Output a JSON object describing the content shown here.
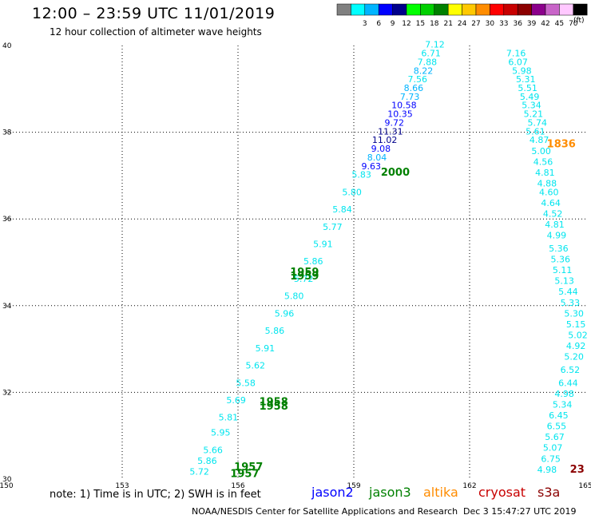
{
  "header": {
    "title": "12:00 – 23:59 UTC 11/01/2019",
    "subtitle": "12 hour collection of altimeter wave heights"
  },
  "legend": {
    "bins": [
      {
        "color": "#808080",
        "label": ""
      },
      {
        "color": "#00ffff",
        "label": "3"
      },
      {
        "color": "#00b4ff",
        "label": "6"
      },
      {
        "color": "#0000ff",
        "label": "9"
      },
      {
        "color": "#00008b",
        "label": "12"
      },
      {
        "color": "#00ff00",
        "label": "15"
      },
      {
        "color": "#00d000",
        "label": "18"
      },
      {
        "color": "#008000",
        "label": "21"
      },
      {
        "color": "#ffff00",
        "label": "24"
      },
      {
        "color": "#ffc800",
        "label": "27"
      },
      {
        "color": "#ff8c00",
        "label": "30"
      },
      {
        "color": "#ff0000",
        "label": "33"
      },
      {
        "color": "#c80000",
        "label": "36"
      },
      {
        "color": "#8b0000",
        "label": "39"
      },
      {
        "color": "#8b008b",
        "label": "42"
      },
      {
        "color": "#c864c8",
        "label": "45"
      },
      {
        "color": "#ffc8ff",
        "label": "70"
      },
      {
        "color": "#000000",
        "label": ""
      }
    ],
    "units": "(ft)"
  },
  "map": {
    "lon_ticks": [
      "150",
      "153",
      "156",
      "159",
      "162",
      "165"
    ],
    "lat_ticks": [
      "30",
      "32",
      "34",
      "36",
      "38",
      "40"
    ],
    "lon_range": [
      150,
      165
    ],
    "lat_range": [
      30,
      40
    ],
    "track_east": {
      "color": "#00e5ee",
      "labels": [
        {
          "lon": 162.95,
          "lat": 39.75,
          "v": "7.16"
        },
        {
          "lon": 163.0,
          "lat": 39.55,
          "v": "6.07"
        },
        {
          "lon": 163.1,
          "lat": 39.35,
          "v": "5.98"
        },
        {
          "lon": 163.2,
          "lat": 39.15,
          "v": "5.31"
        },
        {
          "lon": 163.25,
          "lat": 38.95,
          "v": "5.51"
        },
        {
          "lon": 163.3,
          "lat": 38.75,
          "v": "5.49"
        },
        {
          "lon": 163.35,
          "lat": 38.55,
          "v": "5.34"
        },
        {
          "lon": 163.4,
          "lat": 38.35,
          "v": "5.21"
        },
        {
          "lon": 163.5,
          "lat": 38.15,
          "v": "5.74"
        },
        {
          "lon": 163.45,
          "lat": 37.95,
          "v": "5.61"
        },
        {
          "lon": 163.55,
          "lat": 37.75,
          "v": "4.87"
        },
        {
          "lon": 163.6,
          "lat": 37.5,
          "v": "5.00"
        },
        {
          "lon": 163.65,
          "lat": 37.25,
          "v": "4.56"
        },
        {
          "lon": 163.7,
          "lat": 37.0,
          "v": "4.81"
        },
        {
          "lon": 163.75,
          "lat": 36.75,
          "v": "4.88"
        },
        {
          "lon": 163.8,
          "lat": 36.55,
          "v": "4.60"
        },
        {
          "lon": 163.85,
          "lat": 36.3,
          "v": "4.64"
        },
        {
          "lon": 163.9,
          "lat": 36.05,
          "v": "4.52"
        },
        {
          "lon": 163.95,
          "lat": 35.8,
          "v": "4.81"
        },
        {
          "lon": 164.0,
          "lat": 35.55,
          "v": "4.99"
        },
        {
          "lon": 164.05,
          "lat": 35.25,
          "v": "5.36"
        },
        {
          "lon": 164.1,
          "lat": 35.0,
          "v": "5.36"
        },
        {
          "lon": 164.15,
          "lat": 34.75,
          "v": "5.11"
        },
        {
          "lon": 164.2,
          "lat": 34.5,
          "v": "5.13"
        },
        {
          "lon": 164.3,
          "lat": 34.25,
          "v": "5.44"
        },
        {
          "lon": 164.35,
          "lat": 34.0,
          "v": "5.33"
        },
        {
          "lon": 164.45,
          "lat": 33.75,
          "v": "5.30"
        },
        {
          "lon": 164.5,
          "lat": 33.5,
          "v": "5.15"
        },
        {
          "lon": 164.55,
          "lat": 33.25,
          "v": "5.02"
        },
        {
          "lon": 164.5,
          "lat": 33.0,
          "v": "4.92"
        },
        {
          "lon": 164.45,
          "lat": 32.75,
          "v": "5.20"
        },
        {
          "lon": 164.35,
          "lat": 32.45,
          "v": "6.52"
        },
        {
          "lon": 164.3,
          "lat": 32.15,
          "v": "6.44"
        },
        {
          "lon": 164.2,
          "lat": 31.9,
          "v": "4.98"
        },
        {
          "lon": 164.15,
          "lat": 31.65,
          "v": "5.34"
        },
        {
          "lon": 164.05,
          "lat": 31.4,
          "v": "6.45"
        },
        {
          "lon": 164.0,
          "lat": 31.15,
          "v": "6.55"
        },
        {
          "lon": 163.95,
          "lat": 30.9,
          "v": "5.67"
        },
        {
          "lon": 163.9,
          "lat": 30.65,
          "v": "5.07"
        },
        {
          "lon": 163.85,
          "lat": 30.4,
          "v": "6.75"
        },
        {
          "lon": 163.75,
          "lat": 30.15,
          "v": "4.98"
        }
      ]
    },
    "track_upper": {
      "labels": [
        {
          "lon": 161.1,
          "lat": 39.95,
          "v": "7.12",
          "c": "#00e5ee"
        },
        {
          "lon": 161.0,
          "lat": 39.75,
          "v": "6.71",
          "c": "#00e5ee"
        },
        {
          "lon": 160.9,
          "lat": 39.55,
          "v": "7.88",
          "c": "#00e5ee"
        },
        {
          "lon": 160.8,
          "lat": 39.35,
          "v": "8.22",
          "c": "#00b4ff"
        },
        {
          "lon": 160.65,
          "lat": 39.15,
          "v": "7.56",
          "c": "#00e5ee"
        },
        {
          "lon": 160.55,
          "lat": 38.95,
          "v": "8.66",
          "c": "#00b4ff"
        },
        {
          "lon": 160.45,
          "lat": 38.75,
          "v": "7.73",
          "c": "#00b4ff"
        },
        {
          "lon": 160.3,
          "lat": 38.55,
          "v": "10.58",
          "c": "#0000ff"
        },
        {
          "lon": 160.2,
          "lat": 38.35,
          "v": "10.35",
          "c": "#0000ff"
        },
        {
          "lon": 160.05,
          "lat": 38.15,
          "v": "9.72",
          "c": "#0000ff"
        },
        {
          "lon": 159.95,
          "lat": 37.95,
          "v": "11.31",
          "c": "#00008b"
        },
        {
          "lon": 159.8,
          "lat": 37.75,
          "v": "11.02",
          "c": "#00008b"
        },
        {
          "lon": 159.7,
          "lat": 37.55,
          "v": "9.08",
          "c": "#0000ff"
        },
        {
          "lon": 159.6,
          "lat": 37.35,
          "v": "8.04",
          "c": "#00b4ff"
        },
        {
          "lon": 159.45,
          "lat": 37.15,
          "v": "9.63",
          "c": "#0000ff"
        }
      ]
    },
    "track_lower": {
      "color": "#00e5ee",
      "labels": [
        {
          "lon": 155.0,
          "lat": 30.1,
          "v": "5.72"
        },
        {
          "lon": 155.2,
          "lat": 30.35,
          "v": "5.86"
        },
        {
          "lon": 155.35,
          "lat": 30.6,
          "v": "5.66"
        },
        {
          "lon": 155.55,
          "lat": 31.0,
          "v": "5.95"
        },
        {
          "lon": 155.75,
          "lat": 31.35,
          "v": "5.81"
        },
        {
          "lon": 155.95,
          "lat": 31.75,
          "v": "5.69"
        },
        {
          "lon": 156.2,
          "lat": 32.15,
          "v": "5.58"
        },
        {
          "lon": 156.45,
          "lat": 32.55,
          "v": "5.62"
        },
        {
          "lon": 156.7,
          "lat": 32.95,
          "v": "5.91"
        },
        {
          "lon": 156.95,
          "lat": 33.35,
          "v": "5.86"
        },
        {
          "lon": 157.2,
          "lat": 33.75,
          "v": "5.96"
        },
        {
          "lon": 157.45,
          "lat": 34.15,
          "v": "5.80"
        },
        {
          "lon": 157.7,
          "lat": 34.55,
          "v": "5.72"
        },
        {
          "lon": 157.95,
          "lat": 34.95,
          "v": "5.86"
        },
        {
          "lon": 158.2,
          "lat": 35.35,
          "v": "5.91"
        },
        {
          "lon": 158.45,
          "lat": 35.75,
          "v": "5.77"
        },
        {
          "lon": 158.7,
          "lat": 36.15,
          "v": "5.84"
        },
        {
          "lon": 158.95,
          "lat": 36.55,
          "v": "5.80"
        },
        {
          "lon": 159.2,
          "lat": 36.95,
          "v": "5.83"
        }
      ]
    },
    "time_labels": [
      {
        "lon": 159.7,
        "lat": 37.0,
        "v": "2000",
        "c": "#008000"
      },
      {
        "lon": 164.0,
        "lat": 37.65,
        "v": "1836",
        "c": "#ff8c00"
      },
      {
        "lon": 157.35,
        "lat": 34.7,
        "v": "1959",
        "c": "#008000"
      },
      {
        "lon": 157.35,
        "lat": 34.6,
        "v": "1959",
        "c": "#008000"
      },
      {
        "lon": 156.55,
        "lat": 31.7,
        "v": "1958",
        "c": "#008000"
      },
      {
        "lon": 156.55,
        "lat": 31.6,
        "v": "1958",
        "c": "#008000"
      },
      {
        "lon": 155.9,
        "lat": 30.2,
        "v": "1957",
        "c": "#008000"
      },
      {
        "lon": 155.8,
        "lat": 30.05,
        "v": "1957",
        "c": "#008000"
      },
      {
        "lon": 164.6,
        "lat": 30.15,
        "v": "23",
        "c": "#8b0000"
      }
    ]
  },
  "footer": {
    "note": "note:  1) Time is in UTC;  2) SWH is in feet",
    "satellites": [
      {
        "name": "jason2",
        "color": "#0000ff"
      },
      {
        "name": "jason3",
        "color": "#008000"
      },
      {
        "name": "altika",
        "color": "#ff8c00"
      },
      {
        "name": "cryosat",
        "color": "#c80000"
      },
      {
        "name": "s3a",
        "color": "#8b0000"
      }
    ],
    "credit": "NOAA/NESDIS Center for Satellite Applications and Research",
    "generated": "Dec  3 15:47:27 UTC 2019"
  }
}
